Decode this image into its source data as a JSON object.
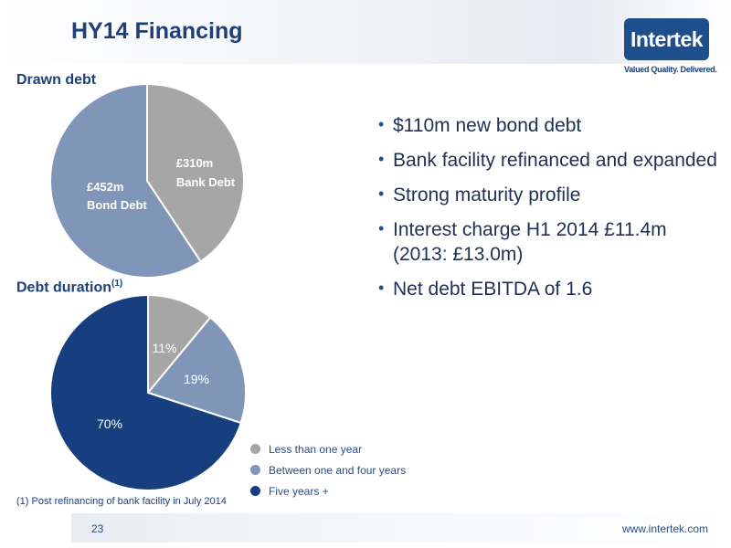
{
  "header": {
    "title": "HY14 Financing",
    "logo_text": "Intertek",
    "tagline": "Valued Quality. Delivered."
  },
  "sections": {
    "drawn_debt_title": "Drawn debt",
    "debt_duration_title": "Debt duration",
    "debt_duration_note_marker": "(1)"
  },
  "bullets": [
    "$110m new bond debt",
    "Bank facility refinanced and expanded",
    "Strong maturity profile",
    "Interest charge H1 2014 £11.4m (2013: £13.0m)",
    "Net debt EBITDA of 1.6"
  ],
  "footnote": "(1) Post refinancing of bank facility in July 2014",
  "footer": {
    "page_number": "23",
    "website": "www.intertek.com"
  },
  "chart_data": [
    {
      "type": "pie",
      "title": "Drawn debt",
      "slices": [
        {
          "value": 310,
          "label_value": "£310m",
          "label_name": "Bank Debt",
          "color": "#a6a6a6"
        },
        {
          "value": 452,
          "label_value": "£452m",
          "label_name": "Bond Debt",
          "color": "#8096b8"
        }
      ]
    },
    {
      "type": "pie",
      "title": "Debt duration",
      "legend_position": "right-bottom",
      "slices": [
        {
          "value": 11,
          "label": "11%",
          "legend": "Less than one year",
          "color": "#a6a6a6"
        },
        {
          "value": 19,
          "label": "19%",
          "legend": "Between one and four years",
          "color": "#8096b8"
        },
        {
          "value": 70,
          "label": "70%",
          "legend": "Five years +",
          "color": "#173f80"
        }
      ]
    }
  ]
}
